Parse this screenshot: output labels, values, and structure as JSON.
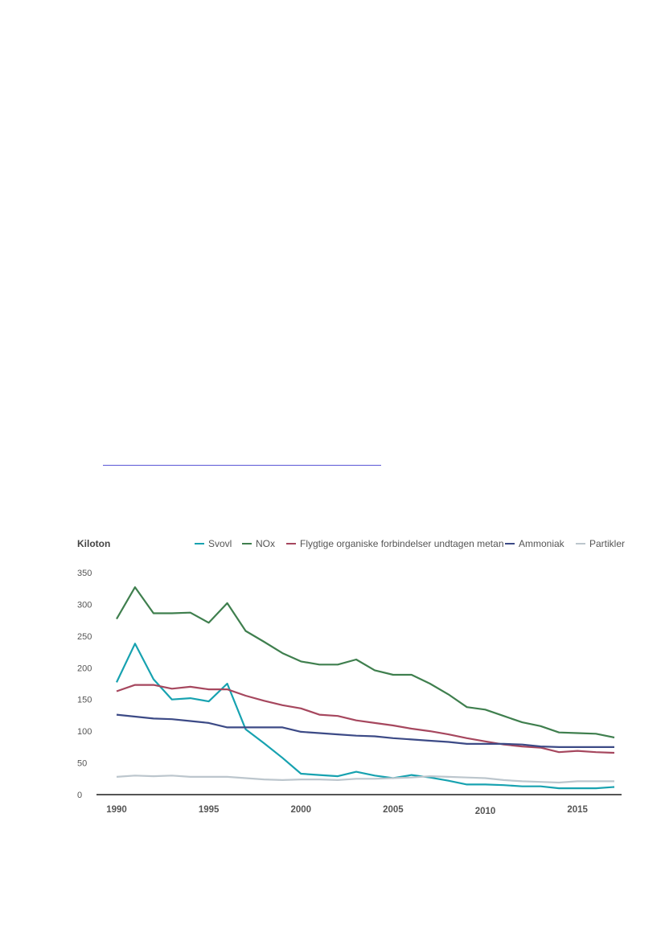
{
  "chart_data": {
    "type": "line",
    "unit_label": "Kiloton",
    "ylim": [
      0,
      350
    ],
    "yticks": [
      0,
      50,
      100,
      150,
      200,
      250,
      300,
      350
    ],
    "xticks": [
      1990,
      1995,
      2000,
      2005,
      2010,
      2015
    ],
    "grid": false,
    "legend_position": "top",
    "x": [
      1990,
      1991,
      1992,
      1993,
      1994,
      1995,
      1996,
      1997,
      1998,
      1999,
      2000,
      2001,
      2002,
      2003,
      2004,
      2005,
      2006,
      2007,
      2008,
      2009,
      2010,
      2011,
      2012,
      2013,
      2014,
      2015,
      2016,
      2017
    ],
    "series": [
      {
        "name": "Svovl",
        "color": "#17a2b0",
        "values": [
          177,
          238,
          182,
          150,
          152,
          147,
          175,
          103,
          81,
          58,
          33,
          31,
          29,
          36,
          30,
          26,
          31,
          27,
          22,
          16,
          16,
          15,
          13,
          13,
          10,
          10,
          10,
          12
        ]
      },
      {
        "name": "NOx",
        "color": "#3f7f4e",
        "values": [
          277,
          327,
          286,
          286,
          287,
          271,
          302,
          258,
          241,
          223,
          210,
          205,
          205,
          213,
          196,
          189,
          189,
          175,
          158,
          138,
          134,
          124,
          114,
          108,
          98,
          97,
          96,
          90
        ]
      },
      {
        "name": "Flygtige organiske forbindelser undtagen metan",
        "color": "#a6475e",
        "values": [
          163,
          173,
          173,
          167,
          170,
          166,
          166,
          156,
          148,
          141,
          136,
          126,
          124,
          117,
          113,
          109,
          104,
          100,
          95,
          89,
          84,
          79,
          76,
          74,
          67,
          69,
          67,
          66
        ]
      },
      {
        "name": "Ammoniak",
        "color": "#3c4a86",
        "values": [
          126,
          123,
          120,
          119,
          116,
          113,
          106,
          106,
          106,
          106,
          99,
          97,
          95,
          93,
          92,
          89,
          87,
          85,
          83,
          80,
          80,
          80,
          79,
          76,
          75,
          75,
          75,
          75
        ]
      },
      {
        "name": "Partikler",
        "color": "#bcc6cd",
        "values": [
          28,
          30,
          29,
          30,
          28,
          28,
          28,
          26,
          24,
          23,
          24,
          24,
          23,
          25,
          25,
          26,
          27,
          29,
          28,
          27,
          26,
          23,
          21,
          20,
          19,
          21,
          21,
          21
        ]
      }
    ]
  }
}
